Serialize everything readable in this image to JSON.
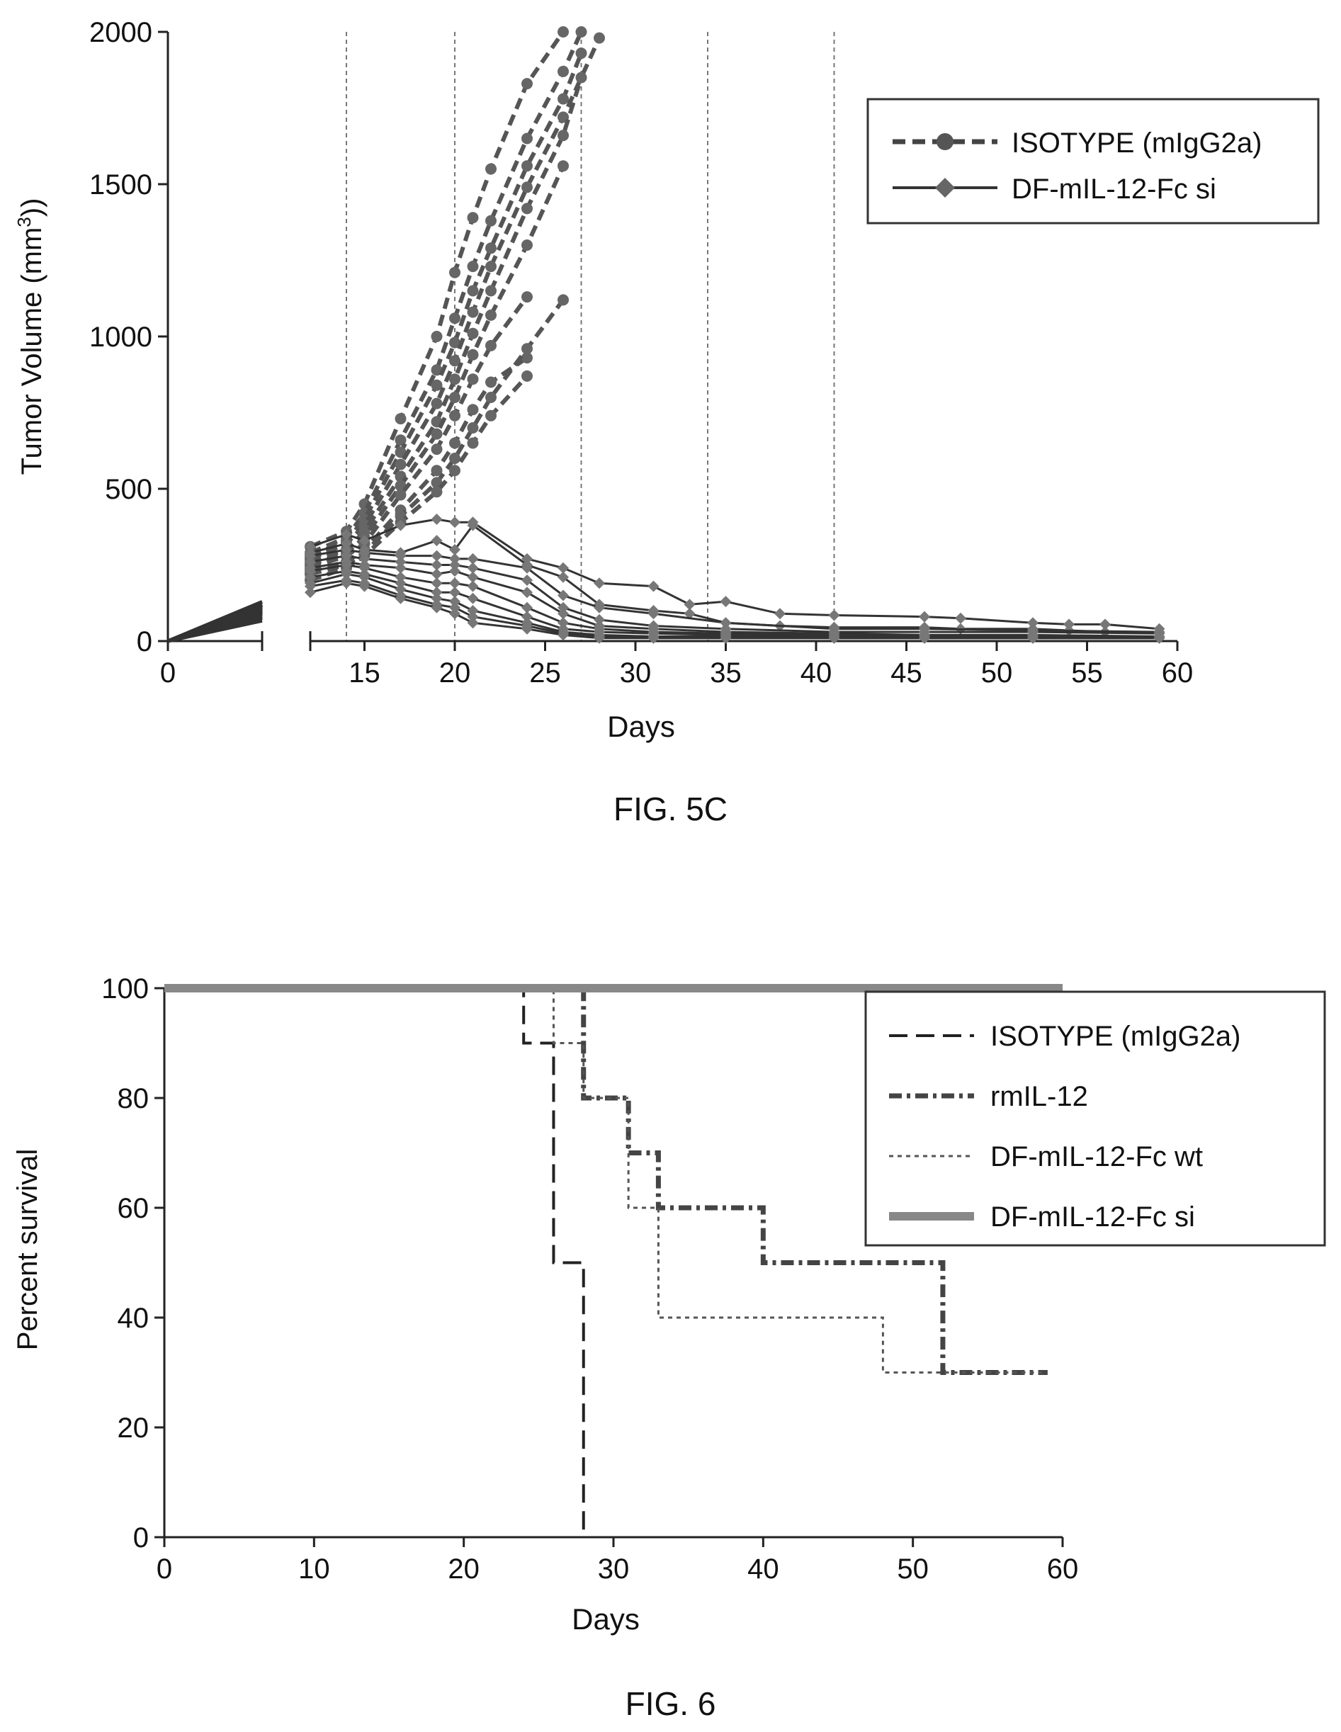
{
  "chart_data": [
    {
      "id": "fig5c",
      "caption": "FIG. 5C",
      "type": "line",
      "ylabel": "Tumor Volume (mm3)",
      "xlabel": "Days",
      "xlim": [
        0,
        60
      ],
      "x_axis_break": [
        5,
        12
      ],
      "ylim": [
        0,
        2000
      ],
      "xticks": [
        0,
        15,
        20,
        25,
        30,
        35,
        40,
        45,
        50,
        55,
        60
      ],
      "yticks": [
        0,
        500,
        1000,
        1500,
        2000
      ],
      "dosing_days": [
        14,
        20,
        27,
        34,
        41
      ],
      "legend": {
        "placement": "top-right",
        "entries": [
          "ISOTYPE (mIgG2a)",
          "DF-mIL-12-Fc si"
        ]
      },
      "colors": {
        "isotype": "#555555",
        "si": "#333333",
        "dosing": "#777777"
      },
      "series": [
        {
          "group": "isotype",
          "x": [
            0,
            12,
            14,
            15,
            17,
            19,
            20,
            21,
            22,
            24,
            26
          ],
          "y": [
            0,
            310,
            360,
            450,
            730,
            1000,
            1210,
            1390,
            1550,
            1830,
            2000
          ]
        },
        {
          "group": "isotype",
          "x": [
            0,
            12,
            14,
            15,
            17,
            19,
            20,
            21,
            22,
            24,
            26,
            27
          ],
          "y": [
            0,
            290,
            340,
            420,
            660,
            890,
            1060,
            1230,
            1380,
            1650,
            1870,
            2000
          ]
        },
        {
          "group": "isotype",
          "x": [
            0,
            12,
            14,
            15,
            17,
            19,
            20,
            21,
            22,
            24,
            26,
            27
          ],
          "y": [
            0,
            280,
            330,
            400,
            620,
            840,
            980,
            1150,
            1290,
            1560,
            1780,
            1930
          ]
        },
        {
          "group": "isotype",
          "x": [
            0,
            12,
            14,
            15,
            17,
            19,
            20,
            21,
            22,
            24,
            26,
            28
          ],
          "y": [
            0,
            270,
            320,
            380,
            580,
            780,
            920,
            1080,
            1230,
            1490,
            1720,
            1980
          ]
        },
        {
          "group": "isotype",
          "x": [
            0,
            12,
            14,
            15,
            17,
            19,
            20,
            21,
            22,
            24,
            26,
            27
          ],
          "y": [
            0,
            260,
            300,
            360,
            540,
            720,
            860,
            1010,
            1150,
            1420,
            1660,
            1850
          ]
        },
        {
          "group": "isotype",
          "x": [
            0,
            12,
            14,
            15,
            17,
            19,
            20,
            21,
            22,
            24,
            26
          ],
          "y": [
            0,
            250,
            290,
            340,
            510,
            680,
            800,
            940,
            1070,
            1300,
            1560
          ]
        },
        {
          "group": "isotype",
          "x": [
            0,
            12,
            14,
            15,
            17,
            19,
            20,
            21,
            22,
            24
          ],
          "y": [
            0,
            240,
            280,
            320,
            480,
            630,
            740,
            860,
            970,
            1130
          ]
        },
        {
          "group": "isotype",
          "x": [
            0,
            12,
            14,
            15,
            17,
            19,
            20,
            21,
            22,
            24
          ],
          "y": [
            0,
            230,
            260,
            300,
            430,
            560,
            650,
            760,
            850,
            930
          ]
        },
        {
          "group": "isotype",
          "x": [
            0,
            12,
            14,
            15,
            17,
            19,
            20,
            21,
            22,
            24,
            26
          ],
          "y": [
            0,
            220,
            250,
            290,
            410,
            520,
            600,
            700,
            800,
            960,
            1120
          ]
        },
        {
          "group": "isotype",
          "x": [
            0,
            12,
            14,
            15,
            17,
            19,
            20,
            21,
            22,
            24
          ],
          "y": [
            0,
            200,
            240,
            280,
            390,
            490,
            560,
            650,
            740,
            870
          ]
        },
        {
          "group": "si",
          "x": [
            0,
            12,
            14,
            15,
            17,
            19,
            20,
            21,
            24,
            26,
            28,
            31,
            33,
            35,
            38,
            41,
            46,
            48,
            52,
            54,
            56,
            59
          ],
          "y": [
            0,
            310,
            350,
            330,
            380,
            400,
            390,
            390,
            270,
            240,
            190,
            180,
            120,
            130,
            90,
            85,
            80,
            75,
            60,
            55,
            55,
            40
          ]
        },
        {
          "group": "si",
          "x": [
            0,
            12,
            14,
            15,
            17,
            19,
            20,
            21,
            24,
            26,
            28,
            31,
            33,
            35,
            38,
            41,
            46,
            48,
            52,
            54,
            56,
            59
          ],
          "y": [
            0,
            290,
            320,
            300,
            290,
            330,
            300,
            380,
            250,
            210,
            120,
            100,
            90,
            60,
            50,
            45,
            45,
            40,
            40,
            35,
            30,
            25
          ]
        },
        {
          "group": "si",
          "x": [
            0,
            12,
            14,
            15,
            17,
            19,
            20,
            21,
            24,
            26,
            28,
            31,
            35,
            41,
            46,
            52,
            59
          ],
          "y": [
            0,
            280,
            300,
            290,
            280,
            280,
            270,
            270,
            240,
            150,
            110,
            90,
            60,
            40,
            40,
            35,
            30
          ]
        },
        {
          "group": "si",
          "x": [
            0,
            12,
            14,
            15,
            17,
            19,
            20,
            21,
            24,
            26,
            28,
            31,
            35,
            41,
            46,
            52,
            59
          ],
          "y": [
            0,
            260,
            280,
            270,
            260,
            250,
            250,
            240,
            200,
            110,
            70,
            50,
            40,
            30,
            30,
            30,
            25
          ]
        },
        {
          "group": "si",
          "x": [
            0,
            12,
            14,
            15,
            17,
            19,
            20,
            21,
            24,
            26,
            28,
            31,
            35,
            41,
            46,
            52,
            59
          ],
          "y": [
            0,
            240,
            260,
            250,
            240,
            220,
            230,
            210,
            160,
            90,
            50,
            40,
            30,
            25,
            20,
            20,
            15
          ]
        },
        {
          "group": "si",
          "x": [
            0,
            12,
            14,
            15,
            17,
            19,
            20,
            21,
            24,
            26,
            28,
            31,
            35,
            41,
            46,
            52,
            59
          ],
          "y": [
            0,
            230,
            250,
            240,
            210,
            190,
            190,
            180,
            110,
            60,
            40,
            30,
            25,
            20,
            20,
            15,
            15
          ]
        },
        {
          "group": "si",
          "x": [
            0,
            12,
            14,
            15,
            17,
            19,
            20,
            21,
            24,
            26,
            28,
            31,
            35,
            41,
            46,
            52,
            59
          ],
          "y": [
            0,
            210,
            230,
            220,
            190,
            160,
            160,
            140,
            80,
            40,
            30,
            25,
            20,
            15,
            15,
            10,
            10
          ]
        },
        {
          "group": "si",
          "x": [
            0,
            12,
            14,
            15,
            17,
            19,
            20,
            21,
            24,
            26,
            28,
            31,
            35,
            41,
            46,
            52,
            59
          ],
          "y": [
            0,
            190,
            220,
            210,
            170,
            140,
            130,
            100,
            60,
            30,
            20,
            15,
            15,
            10,
            10,
            10,
            10
          ]
        },
        {
          "group": "si",
          "x": [
            0,
            12,
            14,
            15,
            17,
            19,
            20,
            21,
            24,
            26,
            28,
            31,
            35,
            41,
            46,
            52,
            59
          ],
          "y": [
            0,
            180,
            200,
            190,
            150,
            120,
            110,
            80,
            50,
            25,
            15,
            10,
            10,
            10,
            10,
            10,
            10
          ]
        },
        {
          "group": "si",
          "x": [
            0,
            12,
            14,
            15,
            17,
            19,
            20,
            21,
            24,
            26,
            28,
            31,
            35,
            41,
            46,
            52,
            59
          ],
          "y": [
            0,
            160,
            190,
            180,
            140,
            110,
            90,
            60,
            40,
            20,
            10,
            10,
            10,
            10,
            10,
            10,
            10
          ]
        }
      ]
    },
    {
      "id": "fig6",
      "caption": "FIG. 6",
      "type": "line",
      "step": true,
      "ylabel": "Percent survival",
      "xlabel": "Days",
      "xlim": [
        0,
        60
      ],
      "ylim": [
        0,
        100
      ],
      "xticks": [
        0,
        10,
        20,
        30,
        40,
        50,
        60
      ],
      "yticks": [
        0,
        20,
        40,
        60,
        80,
        100
      ],
      "legend": {
        "placement": "top-right"
      },
      "series": [
        {
          "name": "ISOTYPE (mIgG2a)",
          "style": "dash",
          "color": "#222222",
          "x": [
            0,
            24,
            26,
            28
          ],
          "y": [
            100,
            90,
            50,
            0
          ]
        },
        {
          "name": "rmIL-12",
          "style": "dashdot",
          "color": "#444444",
          "x": [
            0,
            28,
            31,
            33,
            40,
            52,
            59
          ],
          "y": [
            100,
            80,
            70,
            60,
            50,
            30,
            30
          ]
        },
        {
          "name": "DF-mIL-12-Fc wt",
          "style": "dot",
          "color": "#555555",
          "x": [
            0,
            26,
            28,
            31,
            33,
            48,
            59
          ],
          "y": [
            100,
            90,
            80,
            60,
            40,
            30,
            30
          ]
        },
        {
          "name": "DF-mIL-12-Fc si",
          "style": "solid-thick",
          "color": "#888888",
          "x": [
            0,
            60
          ],
          "y": [
            100,
            100
          ]
        }
      ]
    }
  ]
}
